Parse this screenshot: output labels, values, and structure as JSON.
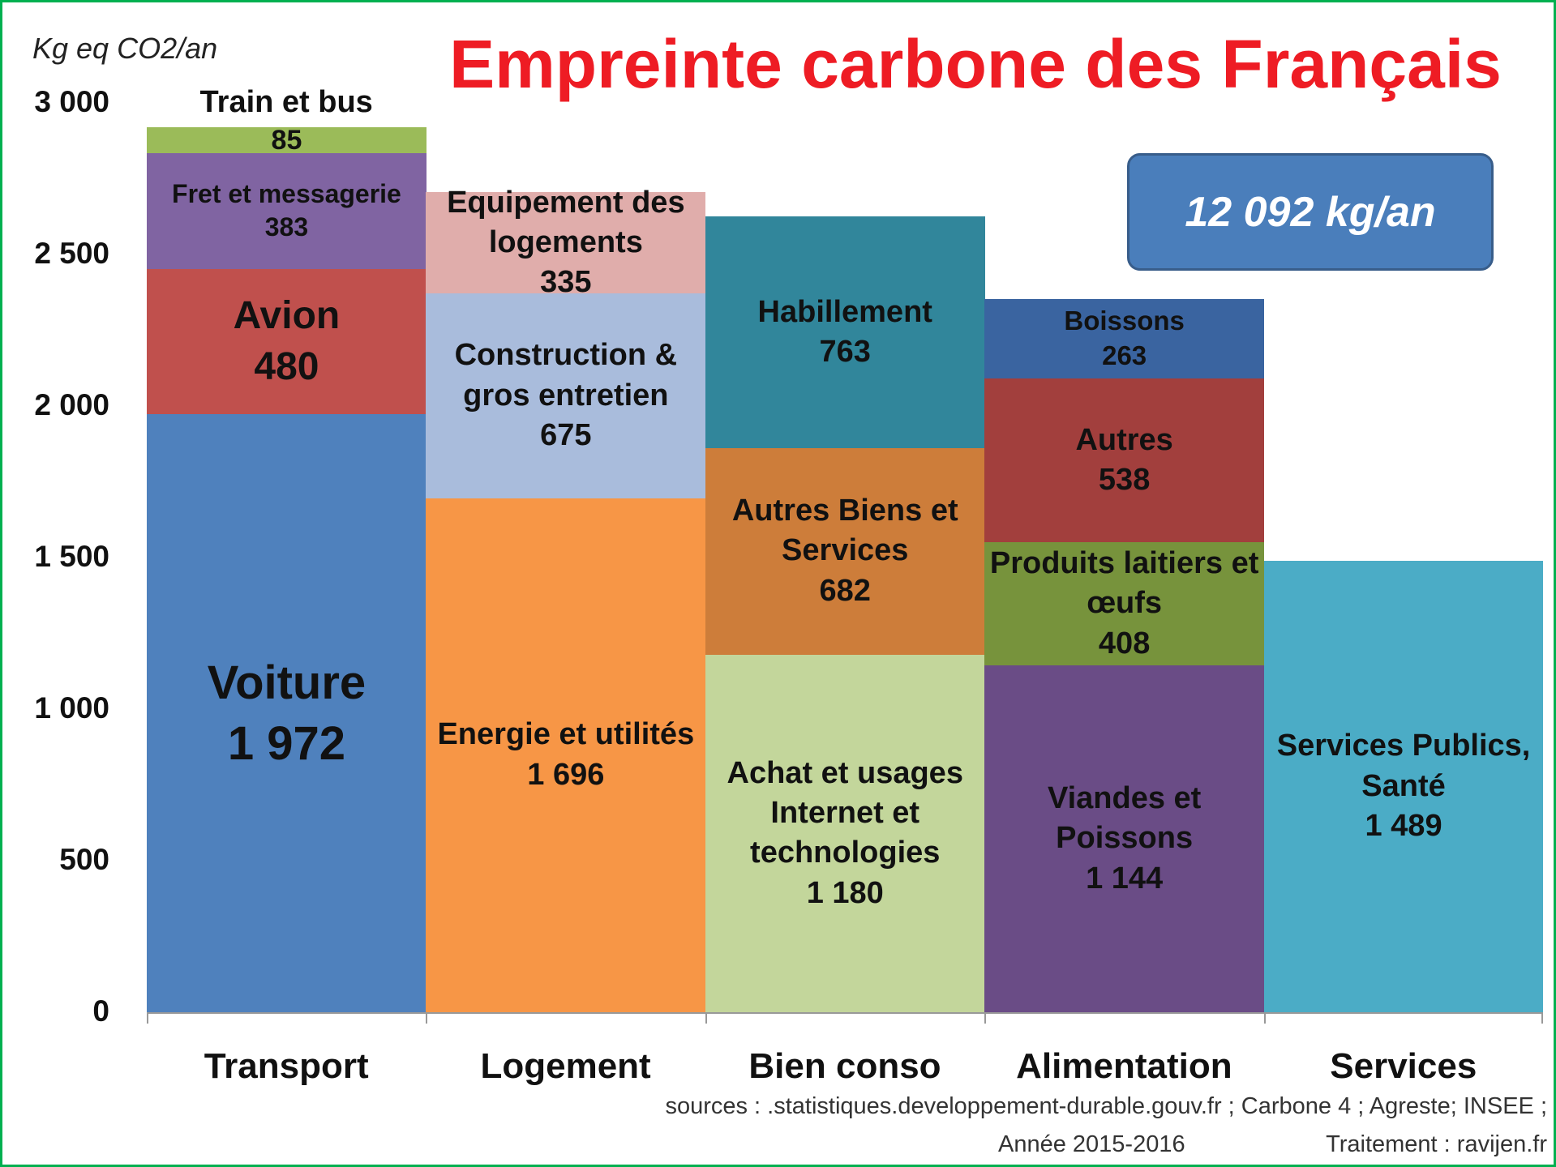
{
  "chart_data": {
    "type": "stacked_bar",
    "title": "Empreinte carbone des Français",
    "y_label": "Kg eq CO2/an",
    "annotation": "12 092 kg/an",
    "sources": [
      "sources : .statistiques.developpement-durable.gouv.fr ; Carbone 4 ; Agreste;  INSEE ;",
      "Année 2015-2016",
      "Traitement : ravijen.fr"
    ],
    "ylim": [
      0,
      3000
    ],
    "yticks": [
      0,
      500,
      {
        "value": 1000,
        "label": "1 000"
      },
      {
        "value": 1500,
        "label": "1 500"
      },
      {
        "value": 2000,
        "label": "2 000"
      },
      {
        "value": 2500,
        "label": "2 500"
      },
      {
        "value": 3000,
        "label": "3 000"
      }
    ],
    "categories": [
      "Transport",
      "Logement",
      "Bien conso",
      "Alimentation",
      "Services"
    ],
    "stacks": [
      {
        "segments": [
          {
            "name": "Voiture",
            "value": 1972,
            "value_label": "1 972",
            "color": "#4f81bd"
          },
          {
            "name": "Avion",
            "value": 480,
            "color": "#c0504d"
          },
          {
            "name": "Fret et messagerie",
            "value": 383,
            "color": "#8064a2"
          },
          {
            "name": "Train et bus",
            "value": 85,
            "color": "#9bbb59"
          }
        ]
      },
      {
        "segments": [
          {
            "name": "Energie et utilités",
            "value": 1696,
            "value_label": "1 696",
            "color": "#f79646"
          },
          {
            "name": "Construction & gros entretien",
            "value": 675,
            "color": "#a9bcdc"
          },
          {
            "name": "Equipement des logements",
            "value": 335,
            "color": "#e0adab"
          }
        ]
      },
      {
        "segments": [
          {
            "name": "Achat et usages Internet et technologies",
            "value": 1180,
            "value_label": "1 180",
            "color": "#c3d69b"
          },
          {
            "name": "Autres Biens et Services",
            "value": 682,
            "color": "#cd7d3a"
          },
          {
            "name": "Habillement",
            "value": 763,
            "color": "#31869b"
          }
        ]
      },
      {
        "segments": [
          {
            "name": "Viandes et Poissons",
            "value": 1144,
            "value_label": "1 144",
            "color": "#6a4c86"
          },
          {
            "name": "Produits laitiers et œufs",
            "value": 408,
            "color": "#77933c"
          },
          {
            "name": "Autres",
            "value": 538,
            "color": "#a23f3d"
          },
          {
            "name": "Boissons",
            "value": 263,
            "color": "#3a64a0"
          }
        ]
      },
      {
        "segments": [
          {
            "name": "Services Publics, Santé",
            "value": 1489,
            "value_label": "1 489",
            "color": "#4bacc6"
          }
        ]
      }
    ]
  }
}
